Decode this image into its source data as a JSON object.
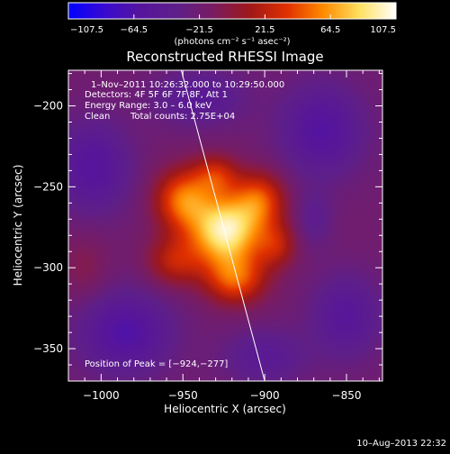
{
  "chart_data": {
    "type": "heatmap",
    "title": "Reconstructed RHESSI Image",
    "xlabel": "Heliocentric X (arcsec)",
    "ylabel": "Heliocentric Y (arcsec)",
    "xlim": [
      -1020,
      -828
    ],
    "ylim": [
      -370,
      -178
    ],
    "x_ticks": [
      -1000,
      -950,
      -900,
      -850
    ],
    "y_ticks": [
      -200,
      -250,
      -300,
      -350
    ],
    "x_tick_labels": [
      "−1000",
      "−950",
      "−900",
      "−850"
    ],
    "y_tick_labels": [
      "−200",
      "−250",
      "−300",
      "−350"
    ],
    "colorbar": {
      "range": [
        -107.5,
        107.5
      ],
      "ticks": [
        -107.5,
        -64.5,
        -21.5,
        21.5,
        64.5,
        107.5
      ],
      "tick_labels": [
        "−107.5",
        "−64.5",
        "−21.5",
        "21.5",
        "64.5",
        "107.5"
      ],
      "units_label": "(photons cm⁻² s⁻¹ asec⁻²)",
      "stops": [
        "#0000ff",
        "#3a0ad0",
        "#56159c",
        "#5e1f8a",
        "#7a1c60",
        "#a01818",
        "#e03000",
        "#ff8a00",
        "#ffe060",
        "#ffffff"
      ]
    },
    "annotations": [
      "1–Nov–2011 10:26:32.000 to 10:29:50.000",
      "Detectors: 4F 5F 6F 7F 8F, Att 1",
      "Energy Range: 3.0 – 6.0 keV",
      "Clean",
      "Total counts: 2.75E+04",
      "Position of Peak = [−924,−277]"
    ],
    "peak": {
      "x": -924,
      "y": -277,
      "value": 107.5
    },
    "limb_line": [
      [
        -951,
        -178
      ],
      [
        -900,
        -370
      ]
    ],
    "sources": [
      {
        "x": -924,
        "y": -277,
        "sx": 15,
        "sy": 15,
        "a": 115
      },
      {
        "x": -950,
        "y": -258,
        "sx": 12,
        "sy": 13,
        "a": 70
      },
      {
        "x": -903,
        "y": -258,
        "sx": 11,
        "sy": 12,
        "a": 58
      },
      {
        "x": -918,
        "y": -307,
        "sx": 13,
        "sy": 11,
        "a": 62
      },
      {
        "x": -955,
        "y": -296,
        "sx": 12,
        "sy": 11,
        "a": 42
      },
      {
        "x": -930,
        "y": -243,
        "sx": 10,
        "sy": 9,
        "a": 45
      },
      {
        "x": -893,
        "y": -286,
        "sx": 9,
        "sy": 10,
        "a": 38
      },
      {
        "x": -1005,
        "y": -238,
        "sx": 16,
        "sy": 20,
        "a": -40
      },
      {
        "x": -985,
        "y": -340,
        "sx": 20,
        "sy": 18,
        "a": -45
      },
      {
        "x": -865,
        "y": -215,
        "sx": 18,
        "sy": 20,
        "a": -42
      },
      {
        "x": -850,
        "y": -330,
        "sx": 15,
        "sy": 18,
        "a": -35
      },
      {
        "x": -940,
        "y": -195,
        "sx": 20,
        "sy": 12,
        "a": -30
      },
      {
        "x": -900,
        "y": -355,
        "sx": 18,
        "sy": 12,
        "a": -28
      },
      {
        "x": -1010,
        "y": -300,
        "sx": 10,
        "sy": 15,
        "a": 15
      },
      {
        "x": -870,
        "y": -270,
        "sx": 8,
        "sy": 12,
        "a": -20
      }
    ]
  },
  "footer": {
    "timestamp": "10–Aug–2013 22:32"
  }
}
